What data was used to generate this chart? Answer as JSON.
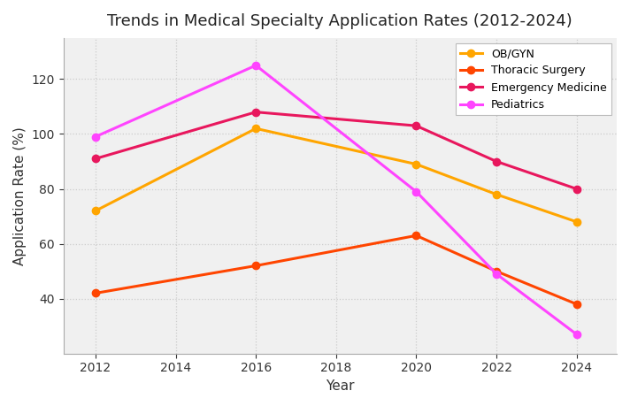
{
  "title": "Trends in Medical Specialty Application Rates (2012-2024)",
  "xlabel": "Year",
  "ylabel": "Application Rate (%)",
  "years": [
    2012,
    2016,
    2020,
    2022,
    2024
  ],
  "series": [
    {
      "name": "OB/GYN",
      "color": "#FFA500",
      "marker": "o",
      "values": [
        72,
        102,
        89,
        78,
        68
      ]
    },
    {
      "name": "Thoracic Surgery",
      "color": "#FF4500",
      "marker": "o",
      "values": [
        42,
        52,
        63,
        50,
        38
      ]
    },
    {
      "name": "Emergency Medicine",
      "color": "#E8175D",
      "marker": "o",
      "values": [
        91,
        108,
        103,
        90,
        80
      ]
    },
    {
      "name": "Pediatrics",
      "color": "#FF44FF",
      "marker": "o",
      "values": [
        99,
        125,
        79,
        49,
        27
      ]
    }
  ],
  "ylim": [
    20,
    135
  ],
  "yticks": [
    40,
    60,
    80,
    100,
    120
  ],
  "xticks": [
    2012,
    2014,
    2016,
    2018,
    2020,
    2022,
    2024
  ],
  "background_color": "#ffffff",
  "plot_bg_color": "#f0f0f0",
  "grid_color": "#cccccc",
  "title_fontsize": 13,
  "axis_label_fontsize": 11,
  "tick_fontsize": 10,
  "legend_fontsize": 9,
  "linewidth": 2.2,
  "markersize": 6
}
